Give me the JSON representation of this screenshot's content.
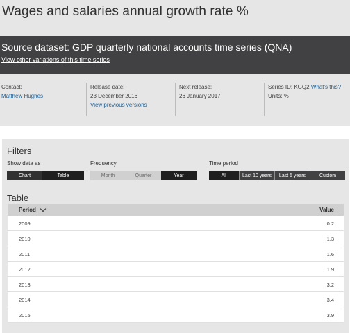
{
  "page_title": "Wages and salaries annual growth rate %",
  "dataset": {
    "title": "Source dataset: GDP quarterly national accounts time series (QNA)",
    "variations_link": "View other variations of this time series"
  },
  "meta": {
    "contact_label": "Contact:",
    "contact_value": "Matthew Hughes",
    "release_label": "Release date:",
    "release_value": "23 December 2016",
    "previous_versions_link": "View previous versions",
    "next_release_label": "Next release:",
    "next_release_value": "26 January 2017",
    "series_id_label": "Series ID: KGQ2",
    "whats_this_link": "What's this?",
    "units_label": "Units: %"
  },
  "filters": {
    "title": "Filters",
    "show_data_as": {
      "label": "Show data as",
      "options": [
        "Chart",
        "Table"
      ],
      "selected": "Table"
    },
    "frequency": {
      "label": "Frequency",
      "options": [
        "Month",
        "Quarter",
        "Year"
      ],
      "selected": "Year"
    },
    "time_period": {
      "label": "Time period",
      "options": [
        "All",
        "Last 10 years",
        "Last 5 years",
        "Custom"
      ],
      "selected": "All"
    }
  },
  "table": {
    "title": "Table",
    "col_period": "Period",
    "col_value": "Value",
    "rows": [
      {
        "period": "2009",
        "value": "0.2"
      },
      {
        "period": "2010",
        "value": "1.3"
      },
      {
        "period": "2011",
        "value": "1.6"
      },
      {
        "period": "2012",
        "value": "1.9"
      },
      {
        "period": "2013",
        "value": "3.2"
      },
      {
        "period": "2014",
        "value": "3.4"
      },
      {
        "period": "2015",
        "value": "3.9"
      }
    ]
  },
  "colors": {
    "link": "#206095",
    "dark_bar": "#414042",
    "selected_button": "#1f1f1f",
    "page_background": "#e6e6e6"
  }
}
